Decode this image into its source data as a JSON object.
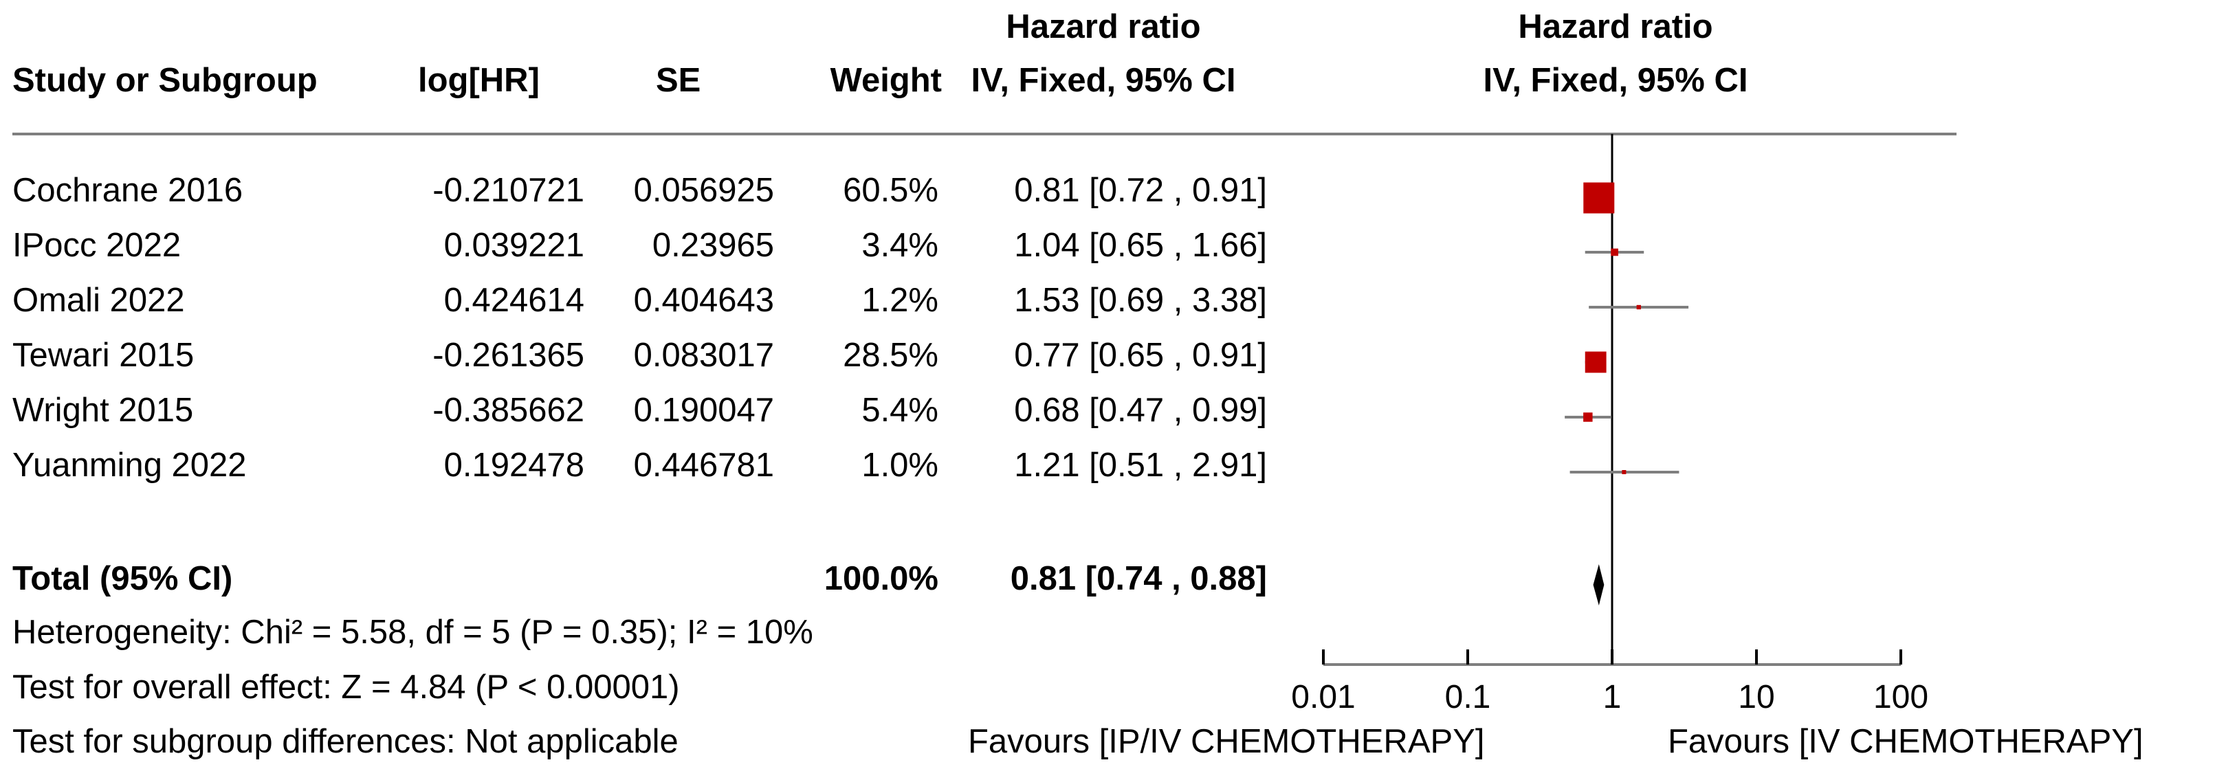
{
  "headers": {
    "study": "Study or Subgroup",
    "loghr": "log[HR]",
    "se": "SE",
    "weight": "Weight",
    "hr_line1": "Hazard ratio",
    "hr_line2": "IV, Fixed, 95% CI",
    "plot_line1": "Hazard ratio",
    "plot_line2": "IV, Fixed, 95% CI"
  },
  "studies": [
    {
      "name": "Cochrane 2016",
      "loghr": "-0.210721",
      "se": "0.056925",
      "weight": "60.5%",
      "ci": "0.81 [0.72 , 0.91]"
    },
    {
      "name": "IPocc 2022",
      "loghr": "0.039221",
      "se": "0.23965",
      "weight": "3.4%",
      "ci": "1.04 [0.65 , 1.66]"
    },
    {
      "name": "Omali 2022",
      "loghr": "0.424614",
      "se": "0.404643",
      "weight": "1.2%",
      "ci": "1.53 [0.69 , 3.38]"
    },
    {
      "name": "Tewari 2015",
      "loghr": "-0.261365",
      "se": "0.083017",
      "weight": "28.5%",
      "ci": "0.77 [0.65 , 0.91]"
    },
    {
      "name": "Wright 2015",
      "loghr": "-0.385662",
      "se": "0.190047",
      "weight": "5.4%",
      "ci": "0.68 [0.47 , 0.99]"
    },
    {
      "name": "Yuanming 2022",
      "loghr": "0.192478",
      "se": "0.446781",
      "weight": "1.0%",
      "ci": "1.21 [0.51 , 2.91]"
    }
  ],
  "total": {
    "label": "Total (95% CI)",
    "weight": "100.0%",
    "ci": "0.81 [0.74 , 0.88]"
  },
  "footnotes": {
    "heterogeneity": "Heterogeneity: Chi² = 5.58, df = 5 (P = 0.35); I² = 10%",
    "overall": "Test for overall effect: Z = 4.84 (P < 0.00001)",
    "subgroup": "Test for subgroup differences: Not applicable"
  },
  "axis": {
    "ticks": [
      "0.01",
      "0.1",
      "1",
      "10",
      "100"
    ],
    "favours_left": "Favours [IP/IV CHEMOTHERAPY]",
    "favours_right": "Favours [IV CHEMOTHERAPY]"
  },
  "colors": {
    "marker": "#c00000",
    "line": "#7f7f7f",
    "axis": "#000000"
  },
  "chart_data": {
    "type": "forest",
    "xscale": "log",
    "xlim": [
      0.01,
      100
    ],
    "null_value": 1,
    "studies": [
      {
        "name": "Cochrane 2016",
        "hr": 0.81,
        "lo": 0.72,
        "hi": 0.91,
        "weight": 60.5
      },
      {
        "name": "IPocc 2022",
        "hr": 1.04,
        "lo": 0.65,
        "hi": 1.66,
        "weight": 3.4
      },
      {
        "name": "Omali 2022",
        "hr": 1.53,
        "lo": 0.69,
        "hi": 3.38,
        "weight": 1.2
      },
      {
        "name": "Tewari 2015",
        "hr": 0.77,
        "lo": 0.65,
        "hi": 0.91,
        "weight": 28.5
      },
      {
        "name": "Wright 2015",
        "hr": 0.68,
        "lo": 0.47,
        "hi": 0.99,
        "weight": 5.4
      },
      {
        "name": "Yuanming 2022",
        "hr": 1.21,
        "lo": 0.51,
        "hi": 2.91,
        "weight": 1.0
      }
    ],
    "total": {
      "hr": 0.81,
      "lo": 0.74,
      "hi": 0.88
    }
  }
}
